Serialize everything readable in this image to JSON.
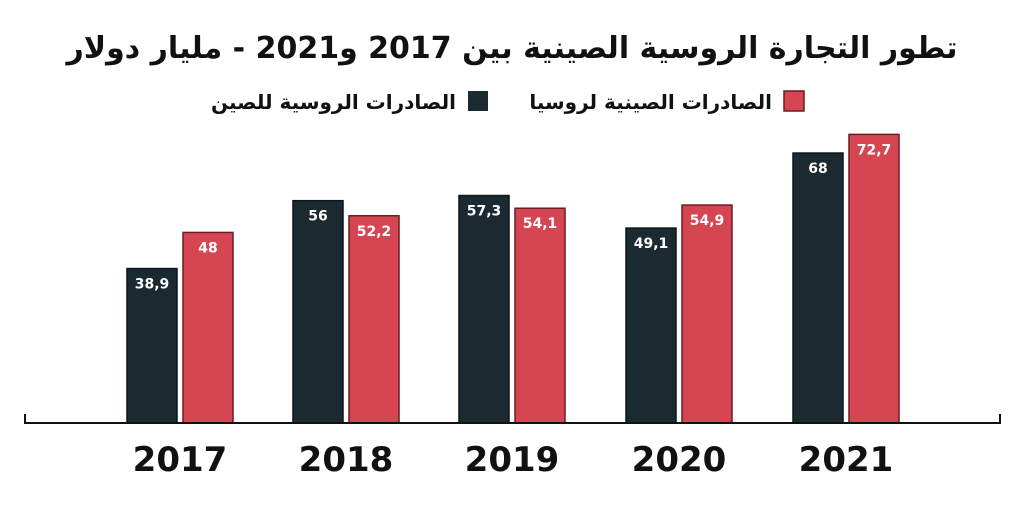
{
  "chart_data": {
    "type": "bar",
    "title": "تطور التجارة الروسية الصينية بين 2017 و2021 - مليار دولار",
    "categories": [
      "2017",
      "2018",
      "2019",
      "2020",
      "2021"
    ],
    "series": [
      {
        "name": "الصادرات الروسية للصين",
        "color": "#1b2a31",
        "values": [
          38.9,
          56,
          57.3,
          49.1,
          68
        ],
        "labels": [
          "38,9",
          "56",
          "57,3",
          "49,1",
          "68"
        ]
      },
      {
        "name": "الصادرات الصينية لروسيا",
        "color": "#d64652",
        "values": [
          48,
          52.2,
          54.1,
          54.9,
          72.7
        ],
        "labels": [
          "48",
          "52,2",
          "54,1",
          "54,9",
          "72,7"
        ]
      }
    ],
    "ylim": [
      0,
      80
    ],
    "grid": false,
    "legend_position": "top"
  }
}
